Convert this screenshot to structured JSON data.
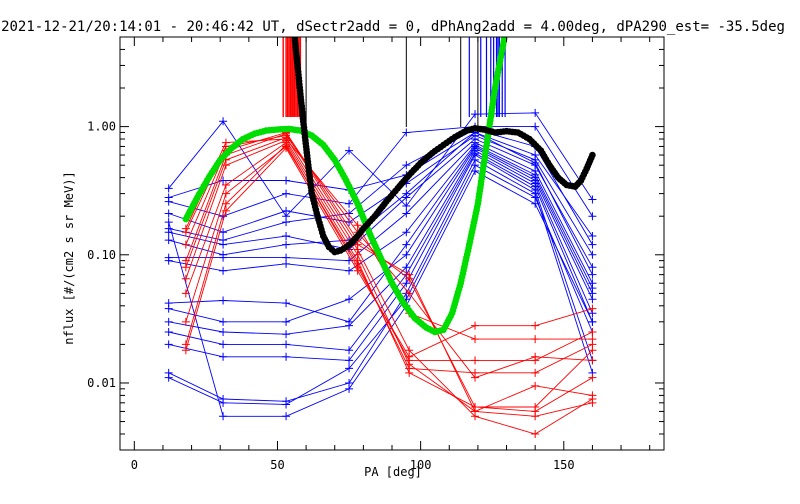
{
  "chart_data": {
    "type": "line",
    "title": "2021-12-21/20:14:01 - 20:46:42 UT, dSectr2add = 0, dPhAng2add = 4.00deg, dPA290_est= -35.5deg",
    "xlabel": "PA [deg]",
    "ylabel": "nflux [#/(cm2 s sr MeV)]",
    "xlim": [
      -5,
      185
    ],
    "ylim": [
      0.003,
      5
    ],
    "yscale": "log",
    "xticks": [
      0,
      50,
      100,
      150
    ],
    "xticklabels": [
      "0",
      "50",
      "100",
      "150"
    ],
    "yticks": [
      0.01,
      0.1,
      1
    ],
    "yticklabels": [
      "0.01",
      "0.10",
      "1.00"
    ],
    "colors": {
      "blue": "#0000ff",
      "red": "#ff0000",
      "green": "#00dd00",
      "black": "#000000",
      "axis": "#000000"
    },
    "top_markers": {
      "red": [
        52,
        53,
        53.5,
        54,
        54.5,
        55,
        55.5,
        56,
        56.5,
        57,
        57.5,
        58
      ],
      "blue": [
        117,
        121,
        123,
        124.5,
        125.5,
        126.5,
        127,
        127.5,
        128.5,
        129.5
      ],
      "black": [
        60,
        95,
        114,
        120
      ]
    },
    "series_groups": [
      {
        "color": "blue",
        "lines": [
          [
            [
              12,
              0.33
            ],
            [
              31,
              1.1
            ],
            [
              53,
              0.2
            ],
            [
              75,
              0.65
            ],
            [
              95,
              0.24
            ],
            [
              119,
              1.25
            ],
            [
              140,
              1.28
            ],
            [
              160,
              0.27
            ]
          ],
          [
            [
              12,
              0.28
            ],
            [
              31,
              0.38
            ],
            [
              53,
              0.38
            ],
            [
              75,
              0.32
            ],
            [
              95,
              0.42
            ],
            [
              119,
              0.9
            ],
            [
              140,
              0.6
            ],
            [
              160,
              0.14
            ]
          ],
          [
            [
              12,
              0.21
            ],
            [
              31,
              0.15
            ],
            [
              53,
              0.22
            ],
            [
              75,
              0.18
            ],
            [
              95,
              0.36
            ],
            [
              119,
              0.85
            ],
            [
              140,
              0.55
            ],
            [
              160,
              0.1
            ]
          ],
          [
            [
              12,
              0.15
            ],
            [
              31,
              0.12
            ],
            [
              53,
              0.14
            ],
            [
              75,
              0.11
            ],
            [
              95,
              0.28
            ],
            [
              119,
              0.8
            ],
            [
              140,
              0.5
            ],
            [
              160,
              0.08
            ]
          ],
          [
            [
              12,
              0.13
            ],
            [
              31,
              0.1
            ],
            [
              53,
              0.12
            ],
            [
              75,
              0.13
            ],
            [
              95,
              0.3
            ],
            [
              119,
              0.9
            ],
            [
              140,
              0.52
            ],
            [
              160,
              0.07
            ]
          ],
          [
            [
              12,
              0.095
            ],
            [
              31,
              0.095
            ],
            [
              53,
              0.095
            ],
            [
              75,
              0.09
            ],
            [
              95,
              0.21
            ],
            [
              119,
              0.75
            ],
            [
              140,
              0.45
            ],
            [
              160,
              0.06
            ]
          ],
          [
            [
              12,
              0.09
            ],
            [
              31,
              0.075
            ],
            [
              53,
              0.085
            ],
            [
              75,
              0.075
            ],
            [
              95,
              0.15
            ],
            [
              119,
              0.72
            ],
            [
              140,
              0.42
            ],
            [
              160,
              0.055
            ]
          ],
          [
            [
              12,
              0.042
            ],
            [
              31,
              0.044
            ],
            [
              53,
              0.042
            ],
            [
              75,
              0.03
            ],
            [
              95,
              0.12
            ],
            [
              119,
              0.7
            ],
            [
              140,
              0.4
            ],
            [
              160,
              0.05
            ]
          ],
          [
            [
              12,
              0.038
            ],
            [
              31,
              0.03
            ],
            [
              53,
              0.03
            ],
            [
              75,
              0.045
            ],
            [
              95,
              0.1
            ],
            [
              119,
              0.68
            ],
            [
              140,
              0.38
            ],
            [
              160,
              0.045
            ]
          ],
          [
            [
              12,
              0.03
            ],
            [
              31,
              0.025
            ],
            [
              53,
              0.024
            ],
            [
              75,
              0.028
            ],
            [
              95,
              0.08
            ],
            [
              119,
              0.65
            ],
            [
              140,
              0.36
            ],
            [
              160,
              0.035
            ]
          ],
          [
            [
              12,
              0.025
            ],
            [
              31,
              0.02
            ],
            [
              53,
              0.02
            ],
            [
              75,
              0.018
            ],
            [
              95,
              0.07
            ],
            [
              119,
              0.62
            ],
            [
              140,
              0.34
            ],
            [
              160,
              0.03
            ]
          ],
          [
            [
              12,
              0.02
            ],
            [
              31,
              0.016
            ],
            [
              53,
              0.016
            ],
            [
              75,
              0.015
            ],
            [
              95,
              0.06
            ],
            [
              119,
              0.6
            ],
            [
              140,
              0.32
            ],
            [
              160,
              0.015
            ]
          ],
          [
            [
              12,
              0.012
            ],
            [
              31,
              0.0075
            ],
            [
              53,
              0.0072
            ],
            [
              75,
              0.01
            ],
            [
              95,
              0.05
            ],
            [
              119,
              0.55
            ],
            [
              140,
              0.3
            ],
            [
              160,
              0.012
            ]
          ],
          [
            [
              12,
              0.011
            ],
            [
              31,
              0.007
            ],
            [
              53,
              0.0068
            ],
            [
              75,
              0.013
            ],
            [
              95,
              0.045
            ],
            [
              119,
              0.5
            ],
            [
              140,
              0.28
            ],
            [
              160,
              0.025
            ]
          ],
          [
            [
              12,
              0.18
            ],
            [
              31,
              0.0055
            ],
            [
              53,
              0.0055
            ],
            [
              75,
              0.009
            ],
            [
              95,
              0.04
            ],
            [
              119,
              0.45
            ],
            [
              140,
              0.25
            ],
            [
              160,
              0.03
            ]
          ],
          [
            [
              12,
              0.26
            ],
            [
              31,
              0.2
            ],
            [
              53,
              0.3
            ],
            [
              75,
              0.25
            ],
            [
              95,
              0.9
            ],
            [
              119,
              1.0
            ],
            [
              140,
              1.0
            ],
            [
              160,
              0.2
            ]
          ],
          [
            [
              12,
              0.16
            ],
            [
              31,
              0.13
            ],
            [
              53,
              0.18
            ],
            [
              75,
              0.21
            ],
            [
              95,
              0.5
            ],
            [
              119,
              0.95
            ],
            [
              140,
              0.7
            ],
            [
              160,
              0.12
            ]
          ]
        ]
      },
      {
        "color": "red",
        "lines": [
          [
            [
              18,
              0.16
            ],
            [
              32,
              0.75
            ],
            [
              53,
              0.8
            ],
            [
              78,
              0.17
            ],
            [
              96,
              0.035
            ],
            [
              119,
              0.022
            ],
            [
              140,
              0.022
            ],
            [
              160,
              0.022
            ]
          ],
          [
            [
              18,
              0.15
            ],
            [
              32,
              0.7
            ],
            [
              53,
              0.85
            ],
            [
              78,
              0.15
            ],
            [
              96,
              0.05
            ],
            [
              119,
              0.011
            ],
            [
              140,
              0.016
            ],
            [
              160,
              0.015
            ]
          ],
          [
            [
              18,
              0.12
            ],
            [
              32,
              0.65
            ],
            [
              53,
              0.9
            ],
            [
              78,
              0.13
            ],
            [
              96,
              0.065
            ],
            [
              119,
              0.0065
            ],
            [
              140,
              0.006
            ],
            [
              160,
              0.011
            ]
          ],
          [
            [
              18,
              0.09
            ],
            [
              32,
              0.6
            ],
            [
              53,
              0.88
            ],
            [
              78,
              0.12
            ],
            [
              96,
              0.07
            ],
            [
              119,
              0.006
            ],
            [
              140,
              0.0095
            ],
            [
              160,
              0.008
            ]
          ],
          [
            [
              18,
              0.08
            ],
            [
              32,
              0.55
            ],
            [
              53,
              0.82
            ],
            [
              78,
              0.11
            ],
            [
              96,
              0.018
            ],
            [
              119,
              0.0055
            ],
            [
              140,
              0.004
            ],
            [
              160,
              0.0075
            ]
          ],
          [
            [
              18,
              0.065
            ],
            [
              32,
              0.5
            ],
            [
              53,
              0.78
            ],
            [
              78,
              0.1
            ],
            [
              96,
              0.014
            ],
            [
              119,
              0.006
            ],
            [
              140,
              0.0055
            ],
            [
              160,
              0.007
            ]
          ],
          [
            [
              18,
              0.05
            ],
            [
              32,
              0.35
            ],
            [
              53,
              0.75
            ],
            [
              78,
              0.09
            ],
            [
              96,
              0.012
            ],
            [
              119,
              0.0065
            ],
            [
              140,
              0.0065
            ],
            [
              160,
              0.018
            ]
          ],
          [
            [
              18,
              0.03
            ],
            [
              32,
              0.3
            ],
            [
              53,
              0.7
            ],
            [
              78,
              0.085
            ],
            [
              96,
              0.013
            ],
            [
              119,
              0.012
            ],
            [
              140,
              0.012
            ],
            [
              160,
              0.02
            ]
          ],
          [
            [
              18,
              0.02
            ],
            [
              32,
              0.25
            ],
            [
              53,
              0.72
            ],
            [
              78,
              0.08
            ],
            [
              96,
              0.015
            ],
            [
              119,
              0.015
            ],
            [
              140,
              0.015
            ],
            [
              160,
              0.025
            ]
          ],
          [
            [
              18,
              0.018
            ],
            [
              32,
              0.22
            ],
            [
              53,
              0.68
            ],
            [
              78,
              0.075
            ],
            [
              96,
              0.016
            ],
            [
              119,
              0.028
            ],
            [
              140,
              0.028
            ],
            [
              160,
              0.038
            ]
          ]
        ]
      }
    ],
    "green_curve": [
      [
        18,
        0.19
      ],
      [
        22,
        0.28
      ],
      [
        26,
        0.4
      ],
      [
        30,
        0.55
      ],
      [
        34,
        0.68
      ],
      [
        38,
        0.8
      ],
      [
        42,
        0.88
      ],
      [
        46,
        0.93
      ],
      [
        50,
        0.95
      ],
      [
        54,
        0.96
      ],
      [
        58,
        0.93
      ],
      [
        62,
        0.85
      ],
      [
        66,
        0.72
      ],
      [
        70,
        0.55
      ],
      [
        74,
        0.38
      ],
      [
        78,
        0.25
      ],
      [
        82,
        0.15
      ],
      [
        86,
        0.095
      ],
      [
        90,
        0.06
      ],
      [
        94,
        0.042
      ],
      [
        98,
        0.032
      ],
      [
        102,
        0.027
      ],
      [
        105,
        0.025
      ],
      [
        108,
        0.026
      ],
      [
        111,
        0.035
      ],
      [
        114,
        0.06
      ],
      [
        117,
        0.12
      ],
      [
        120,
        0.25
      ],
      [
        122,
        0.5
      ],
      [
        124,
        1.0
      ],
      [
        126,
        2.0
      ],
      [
        128,
        3.5
      ],
      [
        130,
        6.0
      ]
    ],
    "black_curve": [
      [
        56,
        5.0
      ],
      [
        57,
        3.0
      ],
      [
        58,
        1.8
      ],
      [
        59,
        1.1
      ],
      [
        60,
        0.7
      ],
      [
        61,
        0.45
      ],
      [
        62,
        0.3
      ],
      [
        64,
        0.2
      ],
      [
        66,
        0.14
      ],
      [
        68,
        0.115
      ],
      [
        70,
        0.105
      ],
      [
        72,
        0.108
      ],
      [
        74,
        0.115
      ],
      [
        76,
        0.125
      ],
      [
        78,
        0.14
      ],
      [
        80,
        0.16
      ],
      [
        84,
        0.2
      ],
      [
        88,
        0.26
      ],
      [
        92,
        0.33
      ],
      [
        96,
        0.42
      ],
      [
        100,
        0.52
      ],
      [
        104,
        0.62
      ],
      [
        108,
        0.72
      ],
      [
        112,
        0.83
      ],
      [
        116,
        0.93
      ],
      [
        119,
        0.97
      ],
      [
        122,
        0.95
      ],
      [
        126,
        0.9
      ],
      [
        130,
        0.92
      ],
      [
        134,
        0.9
      ],
      [
        138,
        0.8
      ],
      [
        142,
        0.65
      ],
      [
        145,
        0.5
      ],
      [
        148,
        0.4
      ],
      [
        151,
        0.35
      ],
      [
        154,
        0.34
      ],
      [
        156,
        0.38
      ],
      [
        158,
        0.47
      ],
      [
        160,
        0.6
      ]
    ]
  }
}
